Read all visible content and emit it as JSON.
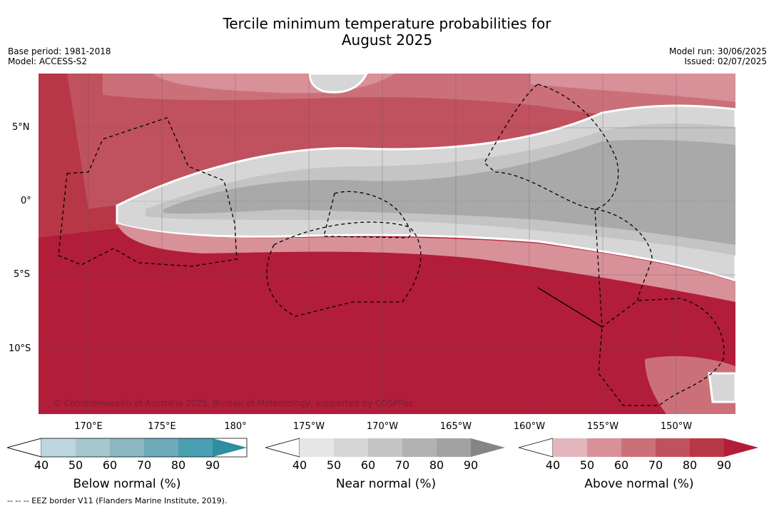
{
  "title_line1": "Tercile minimum temperature probabilities for",
  "title_line2": "August 2025",
  "base_period": "Base period: 1981-2018",
  "model": "Model: ACCESS-S2",
  "model_run": "Model run: 30/06/2025",
  "issued": "Issued: 02/07/2025",
  "copyright": "© Commonwealth of Australia 2025, Bureau of Meteorology, supported by COSPPac",
  "lat_labels": [
    "5°N",
    "0°",
    "5°S",
    "10°S"
  ],
  "lon_labels": [
    "170°E",
    "175°E",
    "180°",
    "175°W",
    "170°W",
    "165°W",
    "160°W",
    "155°W",
    "150°W"
  ],
  "colorbars": [
    {
      "title": "Below normal (%)",
      "ticks": [
        "40",
        "50",
        "60",
        "70",
        "80",
        "90"
      ],
      "colors": [
        "#bdd5dd",
        "#a5c8cf",
        "#8ab7c2",
        "#6dabb9",
        "#4aa0b2",
        "#2e8ea2"
      ]
    },
    {
      "title": "Near normal (%)",
      "ticks": [
        "40",
        "50",
        "60",
        "70",
        "80",
        "90"
      ],
      "colors": [
        "#e6e6e6",
        "#d6d6d6",
        "#c4c4c4",
        "#b2b2b2",
        "#a2a2a2",
        "#858585"
      ]
    },
    {
      "title": "Above normal (%)",
      "ticks": [
        "40",
        "50",
        "60",
        "70",
        "80",
        "90"
      ],
      "colors": [
        "#e2b6bc",
        "#d89199",
        "#cb7079",
        "#c0515e",
        "#b73747",
        "#b21d3a"
      ]
    }
  ],
  "footnote": "--  --  -- EEZ border V11 (Flanders Marine Institute, 2019)."
}
